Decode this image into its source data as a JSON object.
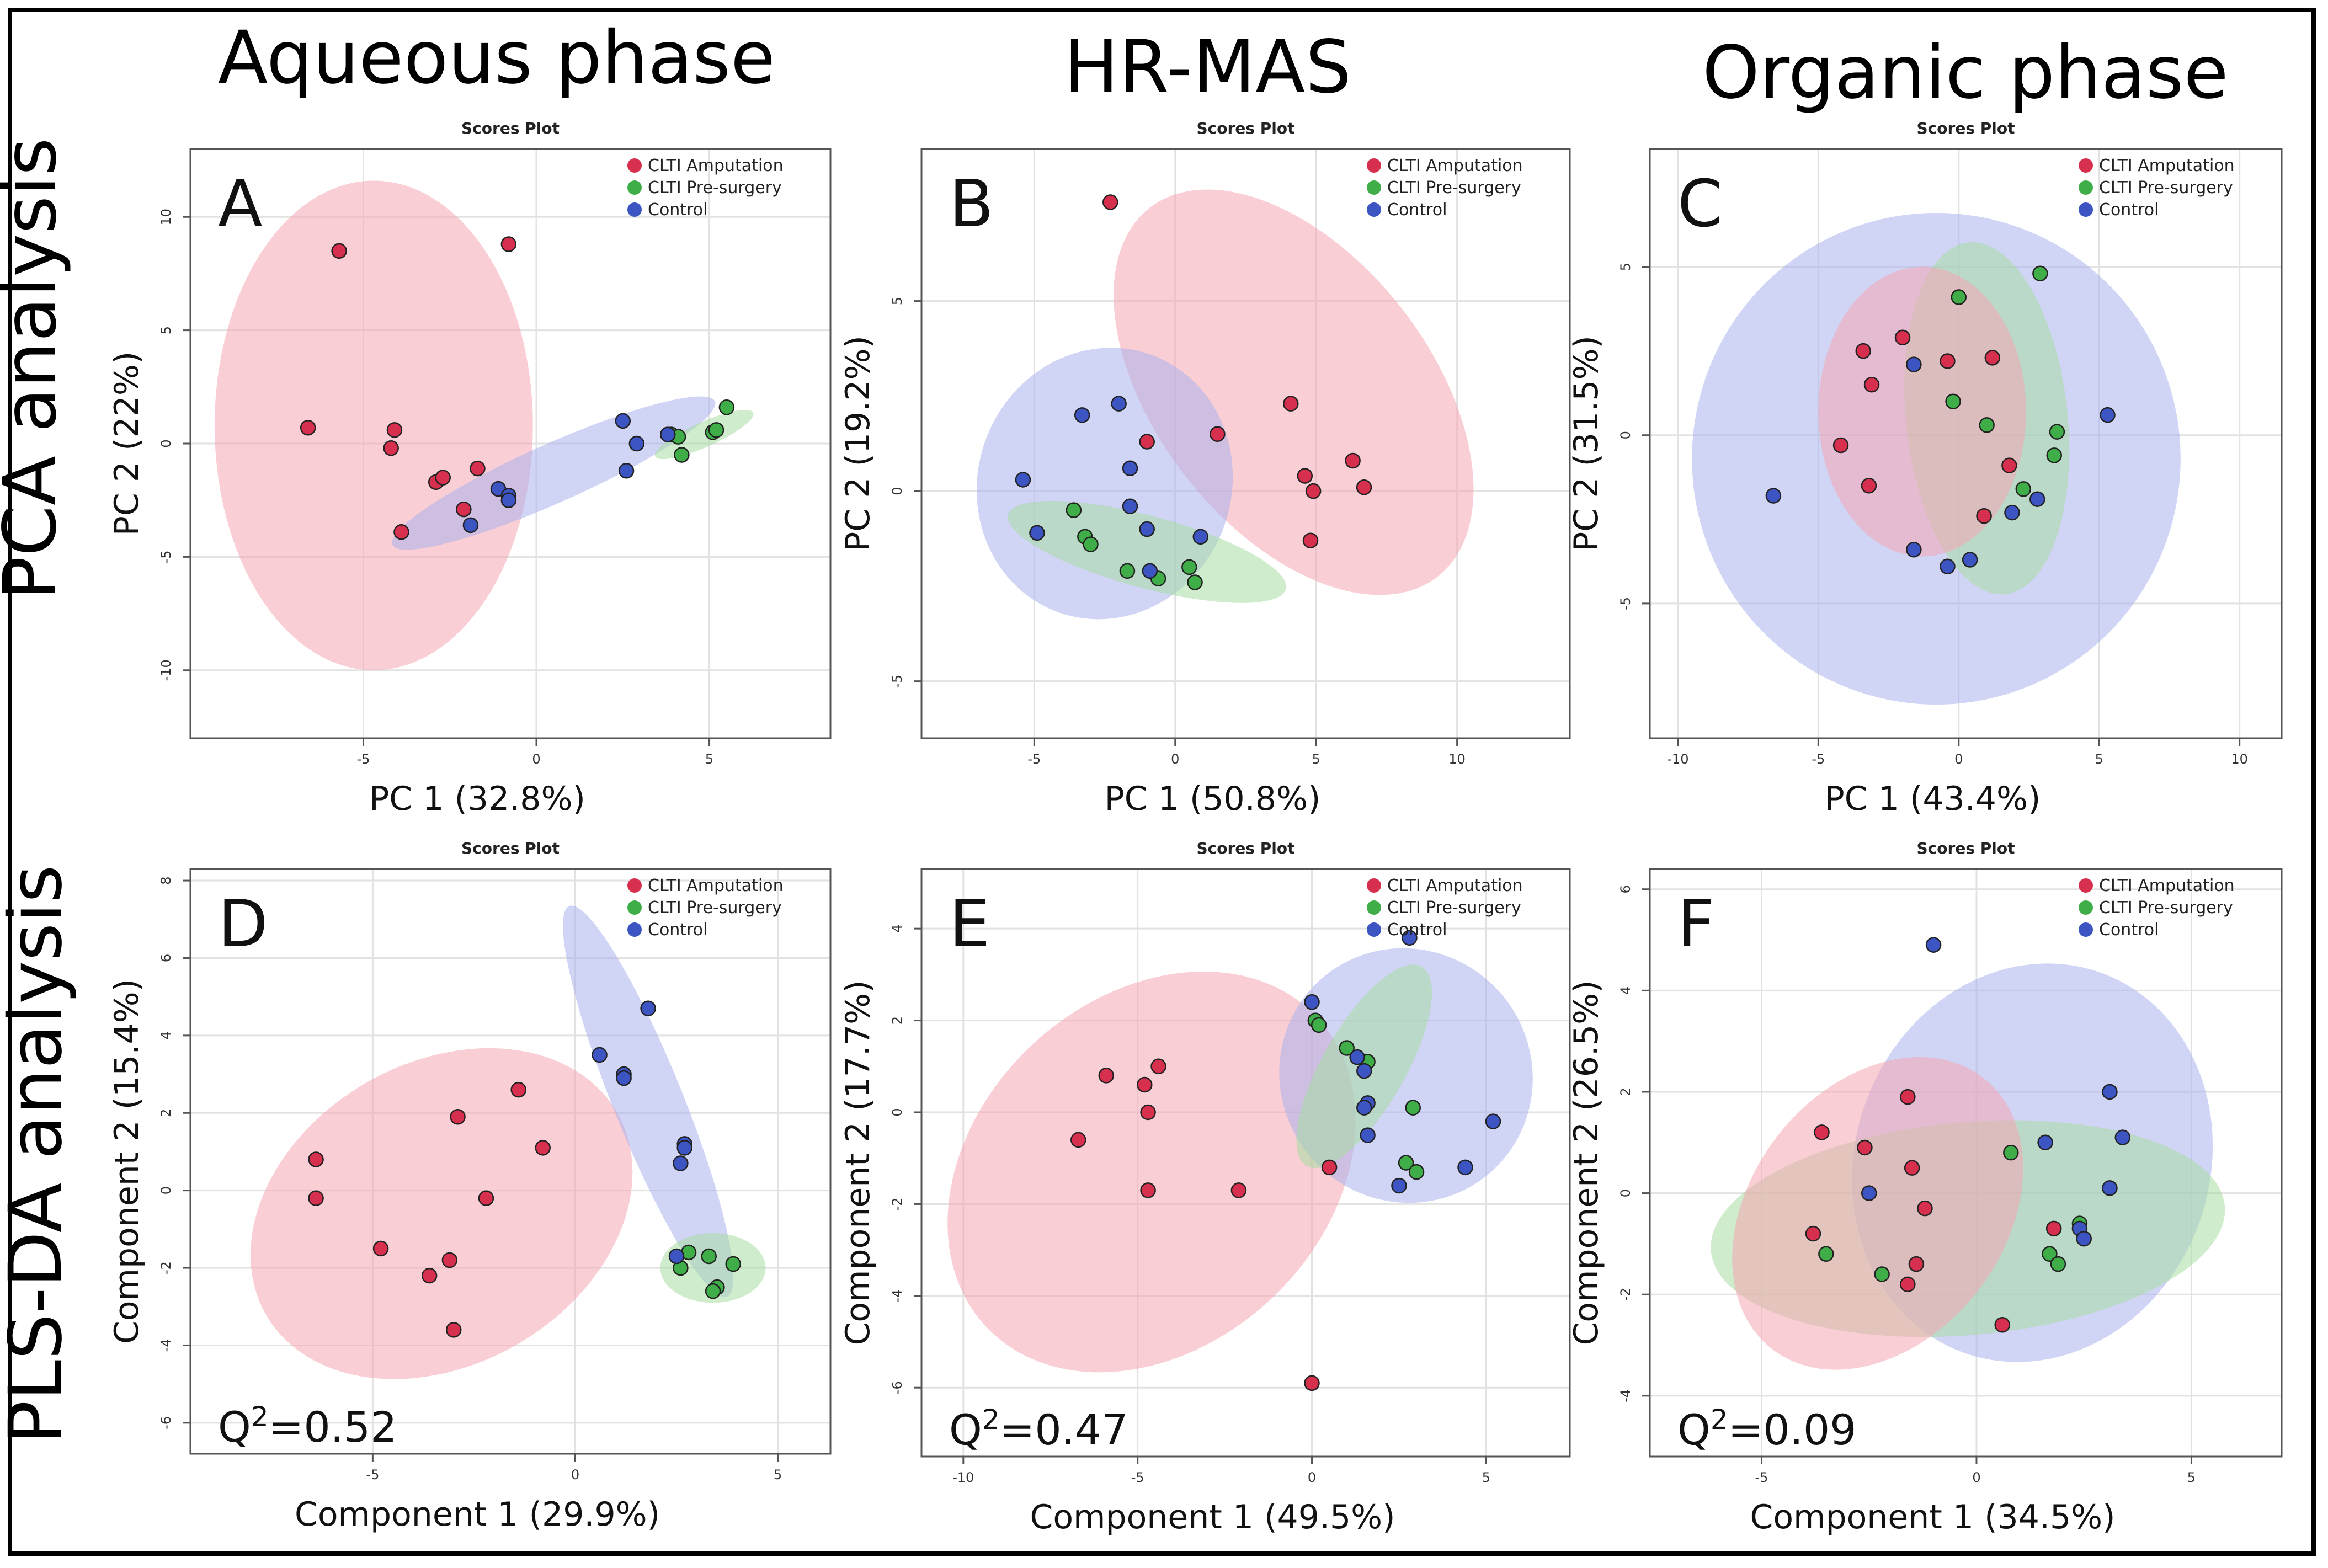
{
  "column_titles": [
    "Aqueous phase",
    "HR-MAS",
    "Organic phase"
  ],
  "row_titles": [
    "PCA analysis",
    "PLS-DA analysis"
  ],
  "legend": [
    {
      "label": "CLTI Amputation",
      "color": "#d6304e"
    },
    {
      "label": "CLTI Pre-surgery",
      "color": "#3fae49"
    },
    {
      "label": "Control",
      "color": "#3d55c3"
    }
  ],
  "ellipse_colors": {
    "CLTI Amputation": "#f4a6b3",
    "CLTI Pre-surgery": "#a8dca3",
    "Control": "#a9b1ec"
  },
  "chart_data": [
    {
      "panel": "A",
      "type": "scatter",
      "title": "Scores Plot",
      "xlabel": "PC 1 (32.8%)",
      "ylabel": "PC 2 (22%)",
      "xlim": [
        -10,
        8.5
      ],
      "ylim": [
        -13,
        13
      ],
      "xticks": [
        -5,
        0,
        5
      ],
      "yticks": [
        -10,
        -5,
        0,
        5,
        10
      ],
      "q2": "",
      "ellipses": [
        {
          "name": "CLTI Amputation",
          "cx": -4.7,
          "cy": 0.8,
          "rx": 4.6,
          "ry": 10.8,
          "angle": 0
        },
        {
          "name": "Control",
          "cx": 0.5,
          "cy": -1.3,
          "rx": 5.1,
          "ry": 1.3,
          "angle": 24
        },
        {
          "name": "CLTI Pre-surgery",
          "cx": 4.85,
          "cy": 0.4,
          "rx": 1.55,
          "ry": 0.55,
          "angle": 24
        }
      ],
      "series": [
        {
          "name": "CLTI Amputation",
          "x": [
            -6.6,
            -5.7,
            -0.8,
            -4.1,
            -4.2,
            -2.9,
            -2.7,
            -1.7,
            -2.1,
            -3.9
          ],
          "y": [
            0.7,
            8.5,
            8.8,
            0.6,
            -0.2,
            -1.7,
            -1.5,
            -1.1,
            -2.9,
            -3.9
          ]
        },
        {
          "name": "CLTI Pre-surgery",
          "x": [
            3.9,
            4.1,
            5.1,
            5.2,
            5.5,
            4.2
          ],
          "y": [
            0.4,
            0.3,
            0.5,
            0.6,
            1.6,
            -0.5
          ]
        },
        {
          "name": "Control",
          "x": [
            -1.9,
            -1.1,
            -0.8,
            -0.8,
            2.5,
            2.9,
            2.6,
            3.8
          ],
          "y": [
            -3.6,
            -2.0,
            -2.3,
            -2.5,
            1.0,
            0.0,
            -1.2,
            0.4
          ]
        }
      ]
    },
    {
      "panel": "B",
      "type": "scatter",
      "title": "Scores Plot",
      "xlabel": "PC 1 (50.8%)",
      "ylabel": "PC 2 (19.2%)",
      "xlim": [
        -9,
        14
      ],
      "ylim": [
        -6.5,
        9
      ],
      "xticks": [
        -5,
        0,
        5,
        10
      ],
      "yticks": [
        -5,
        0,
        5
      ],
      "q2": "",
      "ellipses": [
        {
          "name": "CLTI Amputation",
          "cx": 4.2,
          "cy": 2.6,
          "rx": 8.3,
          "ry": 3.6,
          "angle": -52
        },
        {
          "name": "Control",
          "cx": -2.5,
          "cy": 0.2,
          "rx": 4.5,
          "ry": 3.6,
          "angle": -20
        },
        {
          "name": "CLTI Pre-surgery",
          "cx": -1.0,
          "cy": -1.6,
          "rx": 5.1,
          "ry": 0.95,
          "angle": -15
        }
      ],
      "series": [
        {
          "name": "CLTI Amputation",
          "x": [
            -2.3,
            4.1,
            1.5,
            -1.0,
            6.3,
            4.6,
            6.7,
            4.9,
            4.8
          ],
          "y": [
            7.6,
            2.3,
            1.5,
            1.3,
            0.8,
            0.4,
            0.1,
            0.0,
            -1.3
          ]
        },
        {
          "name": "CLTI Pre-surgery",
          "x": [
            -3.6,
            -3.2,
            -3.0,
            0.5,
            0.7,
            -0.6,
            -1.7
          ],
          "y": [
            -0.5,
            -1.2,
            -1.4,
            -2.0,
            -2.4,
            -2.3,
            -2.1
          ]
        },
        {
          "name": "Control",
          "x": [
            -5.4,
            -4.9,
            -3.3,
            -2.0,
            -1.6,
            -1.0,
            -1.6,
            -0.9,
            0.9
          ],
          "y": [
            0.3,
            -1.1,
            2.0,
            2.3,
            0.6,
            -1.0,
            -0.4,
            -2.1,
            -1.2
          ]
        }
      ]
    },
    {
      "panel": "C",
      "type": "scatter",
      "title": "Scores Plot",
      "xlabel": "PC 1 (43.4%)",
      "ylabel": "PC 2 (31.5%)",
      "xlim": [
        -11,
        11.5
      ],
      "ylim": [
        -9,
        8.5
      ],
      "xticks": [
        -10,
        -5,
        0,
        5,
        10
      ],
      "yticks": [
        -5,
        0,
        5
      ],
      "q2": "",
      "ellipses": [
        {
          "name": "Control",
          "cx": -0.8,
          "cy": -0.7,
          "rx": 8.7,
          "ry": 7.3,
          "angle": 0
        },
        {
          "name": "CLTI Pre-surgery",
          "cx": 1.0,
          "cy": 0.5,
          "rx": 6.3,
          "ry": 2.4,
          "angle": -84
        },
        {
          "name": "CLTI Amputation",
          "cx": -1.3,
          "cy": 0.7,
          "rx": 3.7,
          "ry": 4.3,
          "angle": 0
        }
      ],
      "series": [
        {
          "name": "CLTI Amputation",
          "x": [
            -2.0,
            -3.4,
            -0.4,
            1.2,
            -3.1,
            -4.2,
            -3.2,
            1.8,
            0.9
          ],
          "y": [
            2.9,
            2.5,
            2.2,
            2.3,
            1.5,
            -0.3,
            -1.5,
            -0.9,
            -2.4
          ]
        },
        {
          "name": "CLTI Pre-surgery",
          "x": [
            2.9,
            0.0,
            -0.2,
            1.0,
            3.5,
            3.4,
            2.3
          ],
          "y": [
            4.8,
            4.1,
            1.0,
            0.3,
            0.1,
            -0.6,
            -1.6
          ]
        },
        {
          "name": "Control",
          "x": [
            -1.6,
            5.3,
            -6.6,
            2.8,
            1.9,
            -1.6,
            -0.4,
            0.4
          ],
          "y": [
            2.1,
            0.6,
            -1.8,
            -1.9,
            -2.3,
            -3.4,
            -3.9,
            -3.7
          ]
        }
      ]
    },
    {
      "panel": "D",
      "type": "scatter",
      "title": "Scores Plot",
      "xlabel": "Component 1 (29.9%)",
      "ylabel": "Component 2 (15.4%)",
      "xlim": [
        -9.5,
        6.3
      ],
      "ylim": [
        -6.8,
        8.3
      ],
      "xticks": [
        -5,
        0,
        5
      ],
      "yticks": [
        -6,
        -4,
        -2,
        0,
        2,
        4,
        6,
        8
      ],
      "q2": "Q2=0.52",
      "ellipses": [
        {
          "name": "CLTI Amputation",
          "cx": -3.3,
          "cy": -0.6,
          "rx": 5.0,
          "ry": 3.9,
          "angle": 30
        },
        {
          "name": "Control",
          "cx": 1.8,
          "cy": 2.3,
          "rx": 5.2,
          "ry": 0.9,
          "angle": -68
        },
        {
          "name": "CLTI Pre-surgery",
          "cx": 3.4,
          "cy": -2.0,
          "rx": 1.3,
          "ry": 0.9,
          "angle": 0
        }
      ],
      "series": [
        {
          "name": "CLTI Amputation",
          "x": [
            -6.4,
            -6.4,
            -1.4,
            -2.9,
            -0.8,
            -2.2,
            -4.8,
            -3.1,
            -3.6,
            -3.0
          ],
          "y": [
            0.8,
            -0.2,
            2.6,
            1.9,
            1.1,
            -0.2,
            -1.5,
            -1.8,
            -2.2,
            -3.6
          ]
        },
        {
          "name": "CLTI Pre-surgery",
          "x": [
            2.8,
            3.3,
            3.9,
            2.6,
            3.5,
            3.4
          ],
          "y": [
            -1.6,
            -1.7,
            -1.9,
            -2.0,
            -2.5,
            -2.6
          ]
        },
        {
          "name": "Control",
          "x": [
            1.8,
            0.6,
            1.2,
            1.2,
            2.7,
            2.7,
            2.6,
            2.5
          ],
          "y": [
            4.7,
            3.5,
            3.0,
            2.9,
            1.2,
            1.1,
            0.7,
            -1.7
          ]
        }
      ]
    },
    {
      "panel": "E",
      "type": "scatter",
      "title": "Scores Plot",
      "xlabel": "Component 1 (49.5%)",
      "ylabel": "Component 2 (17.7%)",
      "xlim": [
        -11.2,
        7.4
      ],
      "ylim": [
        -7.5,
        5.3
      ],
      "xticks": [
        -10,
        -5,
        0,
        5
      ],
      "yticks": [
        -6,
        -4,
        -2,
        0,
        2,
        4
      ],
      "q2": "Q2=0.47",
      "ellipses": [
        {
          "name": "CLTI Amputation",
          "cx": -4.6,
          "cy": -1.3,
          "rx": 6.5,
          "ry": 3.8,
          "angle": 43
        },
        {
          "name": "Control",
          "cx": 2.7,
          "cy": 0.8,
          "rx": 3.6,
          "ry": 2.8,
          "angle": 40
        },
        {
          "name": "CLTI Pre-surgery",
          "cx": 1.5,
          "cy": 1.0,
          "rx": 3.3,
          "ry": 0.9,
          "angle": 60
        }
      ],
      "series": [
        {
          "name": "CLTI Amputation",
          "x": [
            -4.4,
            -5.9,
            -4.8,
            -6.7,
            -4.7,
            -4.7,
            -2.1,
            0.5,
            0.0
          ],
          "y": [
            1.0,
            0.8,
            0.6,
            -0.6,
            0.0,
            -1.7,
            -1.7,
            -1.2,
            -5.9
          ]
        },
        {
          "name": "CLTI Pre-surgery",
          "x": [
            0.1,
            0.2,
            1.0,
            1.6,
            2.9,
            2.7,
            3.0
          ],
          "y": [
            2.0,
            1.9,
            1.4,
            1.1,
            0.1,
            -1.1,
            -1.3
          ]
        },
        {
          "name": "Control",
          "x": [
            2.8,
            0.0,
            1.3,
            1.5,
            1.6,
            1.5,
            1.6,
            4.4,
            2.5,
            5.2
          ],
          "y": [
            3.8,
            2.4,
            1.2,
            0.9,
            0.2,
            0.1,
            -0.5,
            -1.2,
            -1.6,
            -0.2
          ]
        }
      ]
    },
    {
      "panel": "F",
      "type": "scatter",
      "title": "Scores Plot",
      "xlabel": "Component 1 (34.5%)",
      "ylabel": "Component 2 (26.5%)",
      "xlim": [
        -7.6,
        7.1
      ],
      "ylim": [
        -5.2,
        6.4
      ],
      "xticks": [
        -5,
        0,
        5
      ],
      "yticks": [
        -4,
        -2,
        0,
        2,
        4,
        6
      ],
      "q2": "Q2=0.09",
      "ellipses": [
        {
          "name": "Control",
          "cx": 1.3,
          "cy": 0.6,
          "rx": 4.7,
          "ry": 3.5,
          "angle": 70
        },
        {
          "name": "CLTI Pre-surgery",
          "cx": -0.2,
          "cy": -0.7,
          "rx": 6.0,
          "ry": 2.1,
          "angle": 5
        },
        {
          "name": "CLTI Amputation",
          "cx": -2.3,
          "cy": -0.4,
          "rx": 4.0,
          "ry": 2.5,
          "angle": 52
        }
      ],
      "series": [
        {
          "name": "CLTI Amputation",
          "x": [
            -1.6,
            -3.6,
            -2.6,
            -1.5,
            -1.2,
            -3.8,
            -1.4,
            -1.6,
            0.6,
            1.8
          ],
          "y": [
            1.9,
            1.2,
            0.9,
            0.5,
            -0.3,
            -0.8,
            -1.4,
            -1.8,
            -2.6,
            -0.7
          ]
        },
        {
          "name": "CLTI Pre-surgery",
          "x": [
            0.8,
            2.4,
            1.7,
            1.9,
            -2.2,
            -3.5
          ],
          "y": [
            0.8,
            -0.6,
            -1.2,
            -1.4,
            -1.6,
            -1.2
          ]
        },
        {
          "name": "Control",
          "x": [
            -1.0,
            3.1,
            3.4,
            1.6,
            -2.5,
            3.1,
            2.4,
            2.5
          ],
          "y": [
            4.9,
            2.0,
            1.1,
            1.0,
            0.0,
            0.1,
            -0.7,
            -0.9
          ]
        }
      ]
    }
  ]
}
